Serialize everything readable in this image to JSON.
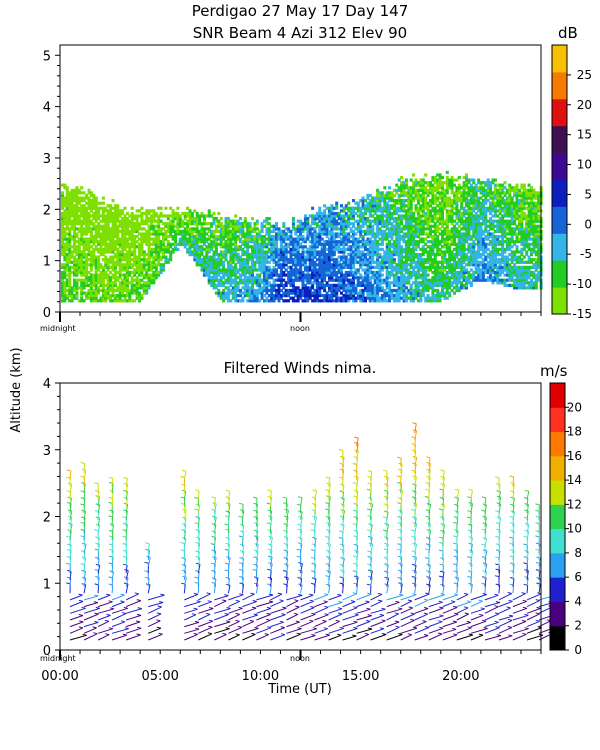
{
  "chart_data": [
    {
      "type": "heatmap",
      "title": "Perdigao  27 May 17 Day 147",
      "subtitle": "SNR Beam 4 Azi 312 Elev 90",
      "ylabel": "Altitude (km)",
      "ylim": [
        0,
        5.2
      ],
      "yticks": [
        "0",
        "1",
        "2",
        "3",
        "4",
        "5"
      ],
      "x_markers": [
        "midnight",
        "noon"
      ],
      "colorbar": {
        "unit": "dB",
        "range": [
          -15,
          30
        ],
        "ticks": [
          "-15",
          "-10",
          "-5",
          "0",
          "5",
          "10",
          "15",
          "20",
          "25"
        ],
        "colors": [
          "#7ee000",
          "#22cc22",
          "#33b5e6",
          "#1565d8",
          "#0a1fbe",
          "#3b0a90",
          "#3e1050",
          "#e01010",
          "#f47a00",
          "#f7c000"
        ]
      },
      "cells": [
        {
          "t": 0.5,
          "h0": 0.2,
          "h1": 2.3,
          "db": -10
        },
        {
          "t": 2.0,
          "h0": 0.2,
          "h1": 2.0,
          "db": -12
        },
        {
          "t": 4.0,
          "h0": 0.2,
          "h1": 1.8,
          "db": -11
        },
        {
          "t": 6.0,
          "h0": 1.3,
          "h1": 1.8,
          "db": -6
        },
        {
          "t": 8.0,
          "h0": 0.2,
          "h1": 1.7,
          "db": -5
        },
        {
          "t": 10.0,
          "h0": 0.2,
          "h1": 1.6,
          "db": -3
        },
        {
          "t": 11.0,
          "h0": 0.2,
          "h1": 1.5,
          "db": 3
        },
        {
          "t": 13.0,
          "h0": 0.2,
          "h1": 1.9,
          "db": 2
        },
        {
          "t": 15.0,
          "h0": 0.2,
          "h1": 2.0,
          "db": 0
        },
        {
          "t": 17.0,
          "h0": 0.2,
          "h1": 2.4,
          "db": -4
        },
        {
          "t": 19.0,
          "h0": 0.2,
          "h1": 2.5,
          "db": -8
        },
        {
          "t": 21.0,
          "h0": 0.6,
          "h1": 2.4,
          "db": -2
        },
        {
          "t": 23.0,
          "h0": 0.4,
          "h1": 2.3,
          "db": -6
        }
      ]
    },
    {
      "type": "scatter",
      "title": "Filtered Winds nima.",
      "xlabel": "Time (UT)",
      "ylabel": "Altitude (km)",
      "xlim": [
        0,
        24
      ],
      "ylim": [
        0,
        4
      ],
      "xticks": [
        "00:00",
        "05:00",
        "10:00",
        "15:00",
        "20:00"
      ],
      "yticks": [
        "0",
        "1",
        "2",
        "3",
        "4"
      ],
      "x_markers": [
        "midnight",
        "noon"
      ],
      "colorbar": {
        "unit": "m/s",
        "range": [
          0,
          22
        ],
        "ticks": [
          "0",
          "2",
          "4",
          "6",
          "8",
          "10",
          "12",
          "14",
          "16",
          "18",
          "20"
        ],
        "colors": [
          "#000000",
          "#4b0082",
          "#2020d0",
          "#2aa0f0",
          "#40e0d0",
          "#30d050",
          "#c8e000",
          "#f0b000",
          "#ff7800",
          "#ff3020",
          "#e00000"
        ]
      },
      "profiles": [
        {
          "t": 0.5,
          "top": 2.6
        },
        {
          "t": 1.2,
          "top": 2.7
        },
        {
          "t": 1.9,
          "top": 2.4
        },
        {
          "t": 2.6,
          "top": 2.5
        },
        {
          "t": 3.3,
          "top": 2.5
        },
        {
          "t": 4.4,
          "top": 1.5
        },
        {
          "t": 6.2,
          "top": 2.6
        },
        {
          "t": 6.9,
          "top": 2.3
        },
        {
          "t": 7.7,
          "top": 2.2
        },
        {
          "t": 8.4,
          "top": 2.3
        },
        {
          "t": 9.1,
          "top": 2.1
        },
        {
          "t": 9.8,
          "top": 2.2
        },
        {
          "t": 10.5,
          "top": 2.3
        },
        {
          "t": 11.3,
          "top": 2.2
        },
        {
          "t": 12.0,
          "top": 2.2
        },
        {
          "t": 12.7,
          "top": 2.3
        },
        {
          "t": 13.4,
          "top": 2.5
        },
        {
          "t": 14.1,
          "top": 2.9
        },
        {
          "t": 14.8,
          "top": 3.1
        },
        {
          "t": 15.5,
          "top": 2.6
        },
        {
          "t": 16.3,
          "top": 2.6
        },
        {
          "t": 17.0,
          "top": 2.8
        },
        {
          "t": 17.7,
          "top": 3.3
        },
        {
          "t": 18.4,
          "top": 2.8
        },
        {
          "t": 19.1,
          "top": 2.6
        },
        {
          "t": 19.8,
          "top": 2.3
        },
        {
          "t": 20.5,
          "top": 2.3
        },
        {
          "t": 21.2,
          "top": 2.2
        },
        {
          "t": 21.9,
          "top": 2.5
        },
        {
          "t": 22.6,
          "top": 2.5
        },
        {
          "t": 23.3,
          "top": 2.3
        },
        {
          "t": 23.9,
          "top": 2.1
        }
      ]
    }
  ]
}
